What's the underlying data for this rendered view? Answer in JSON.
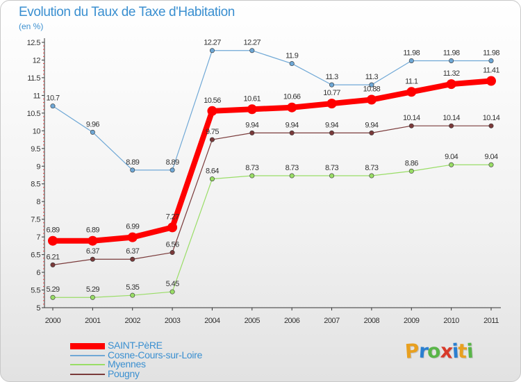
{
  "title": "Evolution du Taux de Taxe d'Habitation",
  "subtitle": "(en %)",
  "logo_text": "Proxiti",
  "logo_colors": [
    "#e8a020",
    "#2a7fd0",
    "#59b548",
    "#d83a2a",
    "#2a7fd0",
    "#e8a020",
    "#59b548"
  ],
  "chart_data": {
    "type": "line",
    "x": [
      2000,
      2001,
      2002,
      2003,
      2004,
      2005,
      2006,
      2007,
      2008,
      2009,
      2010,
      2011
    ],
    "ylim": [
      5,
      12.5
    ],
    "yticks": [
      "5",
      "5.5",
      "6",
      "6.5",
      "7",
      "7.5",
      "8",
      "8.5",
      "9",
      "9.5",
      "10",
      "10.5",
      "11",
      "11.5",
      "12",
      "12.5"
    ],
    "grid": false,
    "legend_position": "bottom-left",
    "series": [
      {
        "name": "SAINT-PèRE",
        "color": "#ff0000",
        "width": 8,
        "values": [
          6.89,
          6.89,
          6.99,
          7.27,
          10.56,
          10.61,
          10.66,
          10.77,
          10.88,
          11.1,
          11.32,
          11.41
        ],
        "labels": [
          "6.89",
          "6.89",
          "6.99",
          "7.27",
          "10.56",
          "10.61",
          "10.66",
          "10.77",
          "10.88",
          "11.1",
          "11.32",
          "11.41"
        ]
      },
      {
        "name": "Cosne-Cours-sur-Loire",
        "color": "#6fa8d6",
        "width": 1.2,
        "values": [
          10.7,
          9.96,
          8.89,
          8.89,
          12.27,
          12.27,
          11.9,
          11.3,
          11.3,
          11.98,
          11.98,
          11.98
        ],
        "labels": [
          "10.7",
          "9.96",
          "8.89",
          "8.89",
          "12.27",
          "12.27",
          "11.9",
          "11.3",
          "11.3",
          "11.98",
          "11.98",
          "11.98"
        ]
      },
      {
        "name": "Myennes",
        "color": "#99dd66",
        "width": 1.2,
        "values": [
          5.29,
          5.29,
          5.35,
          5.45,
          8.64,
          8.73,
          8.73,
          8.73,
          8.73,
          8.86,
          9.04,
          9.04
        ],
        "labels": [
          "5.29",
          "5.29",
          "5.35",
          "5.45",
          "8.64",
          "8.73",
          "8.73",
          "8.73",
          "8.73",
          "8.86",
          "9.04",
          "9.04"
        ]
      },
      {
        "name": "Pougny",
        "color": "#7a3a3a",
        "width": 1.2,
        "values": [
          6.21,
          6.37,
          6.37,
          6.56,
          9.75,
          9.94,
          9.94,
          9.94,
          9.94,
          10.14,
          10.14,
          10.14
        ],
        "labels": [
          "6.21",
          "6.37",
          "6.37",
          "6.56",
          "9.75",
          "9.94",
          "9.94",
          "9.94",
          "9.94",
          "10.14",
          "10.14",
          "10.14"
        ]
      }
    ]
  }
}
